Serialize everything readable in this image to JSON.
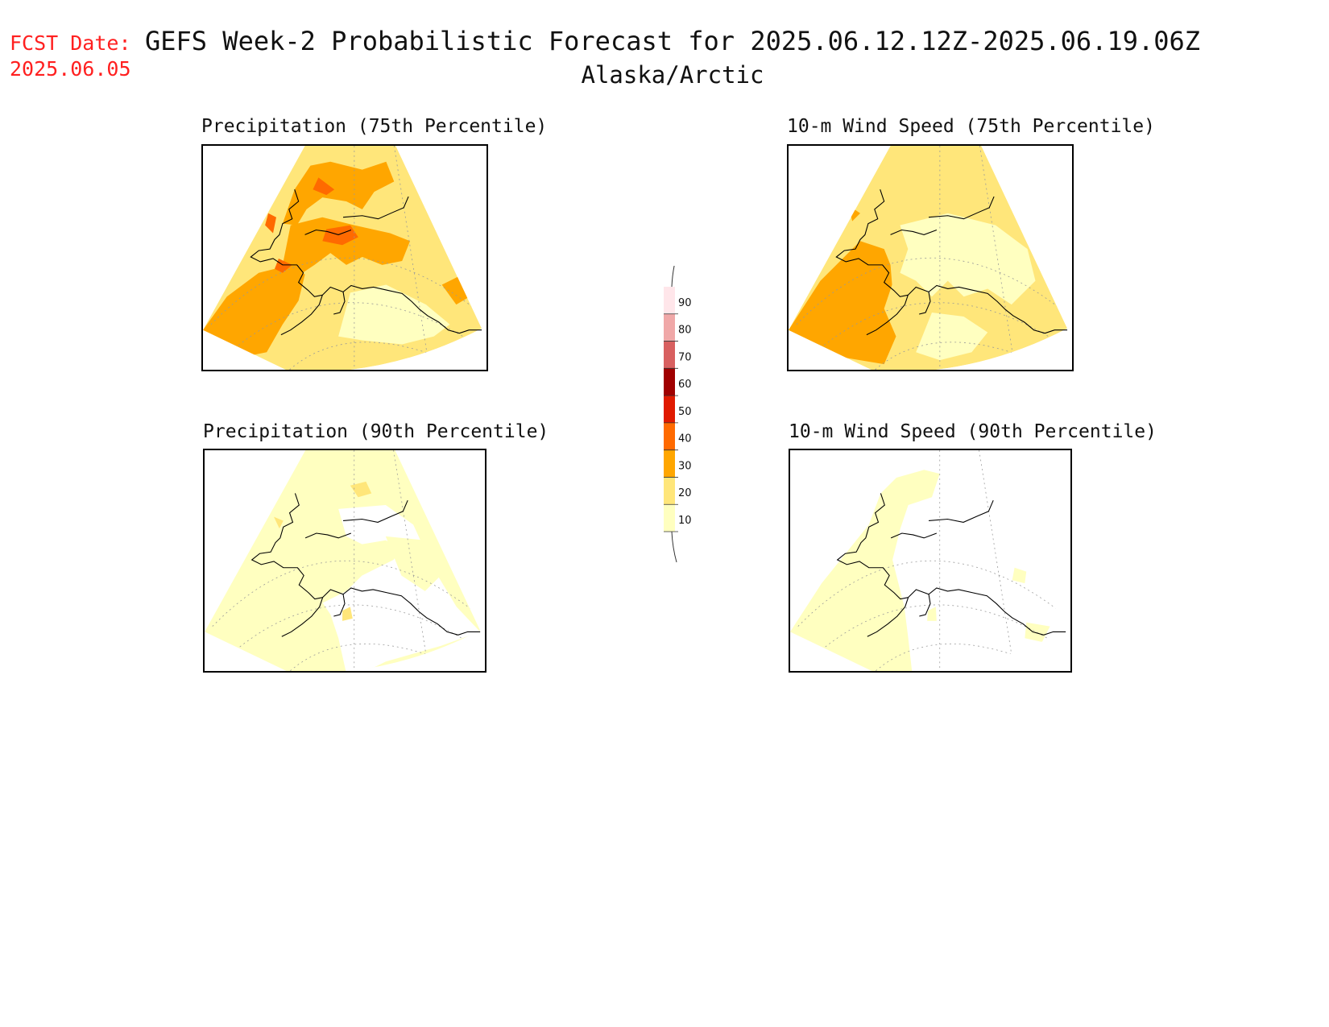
{
  "header": {
    "fcst_label": "FCST Date:",
    "fcst_date": "2025.06.05",
    "title": "GEFS Week-2 Probabilistic Forecast for 2025.06.12.12Z-2025.06.19.06Z",
    "subtitle": "Alaska/Arctic"
  },
  "panels": [
    {
      "title": "Precipitation (75th Percentile)",
      "variable": "precipitation",
      "percentile": 75,
      "dominant_levels": [
        20,
        30,
        40
      ]
    },
    {
      "title": "10-m Wind Speed (75th Percentile)",
      "variable": "wind_speed_10m",
      "percentile": 75,
      "dominant_levels": [
        10,
        20,
        30
      ]
    },
    {
      "title": "Precipitation (90th Percentile)",
      "variable": "precipitation",
      "percentile": 90,
      "dominant_levels": [
        10,
        20
      ]
    },
    {
      "title": "10-m Wind Speed (90th Percentile)",
      "variable": "wind_speed_10m",
      "percentile": 90,
      "dominant_levels": [
        10
      ]
    }
  ],
  "colorbar": {
    "levels": [
      {
        "label": "10",
        "color": "#ffffc0"
      },
      {
        "label": "20",
        "color": "#ffe67a"
      },
      {
        "label": "30",
        "color": "#ffa600"
      },
      {
        "label": "40",
        "color": "#ff6a00"
      },
      {
        "label": "50",
        "color": "#e01a00"
      },
      {
        "label": "60",
        "color": "#a00000"
      },
      {
        "label": "70",
        "color": "#d86060"
      },
      {
        "label": "80",
        "color": "#f0a8a8"
      },
      {
        "label": "90",
        "color": "#ffe6ea"
      }
    ]
  }
}
